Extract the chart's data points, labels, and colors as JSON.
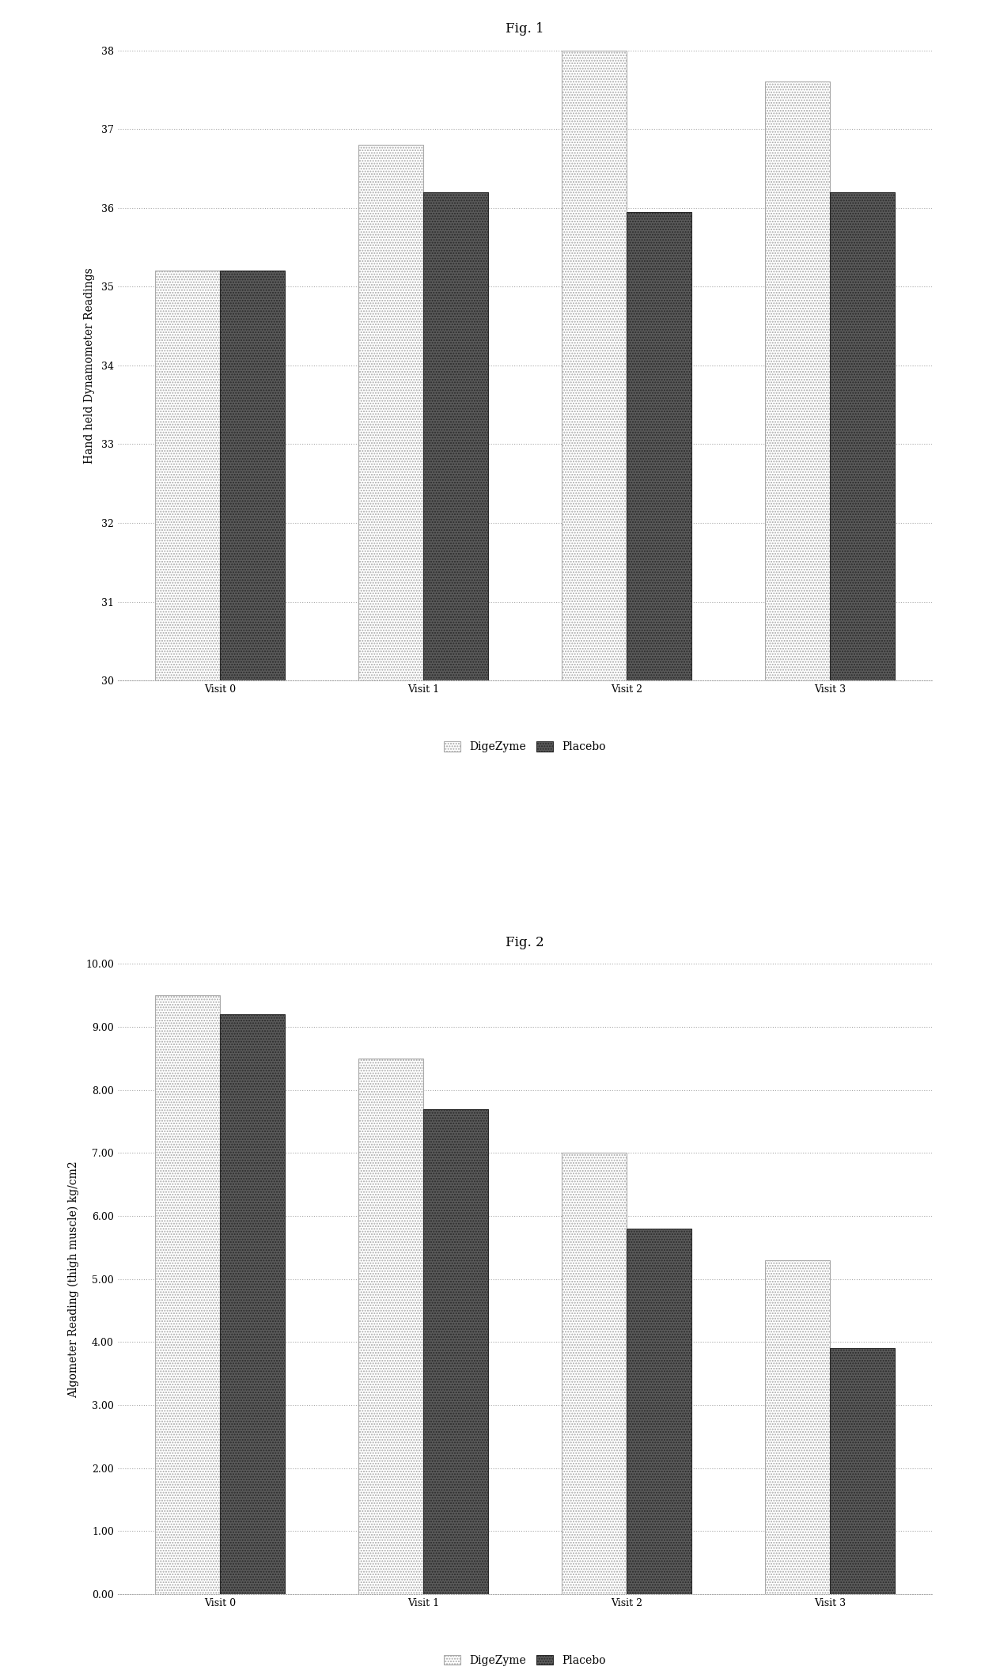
{
  "fig1": {
    "title": "Fig. 1",
    "categories": [
      "Visit 0",
      "Visit 1",
      "Visit 2",
      "Visit 3"
    ],
    "digozyme": [
      35.2,
      36.8,
      38.0,
      37.6
    ],
    "placebo": [
      35.2,
      36.2,
      35.95,
      36.2
    ],
    "ylabel": "Hand held Dynamometer Readings",
    "ylim": [
      30,
      38
    ],
    "yticks": [
      30,
      31,
      32,
      33,
      34,
      35,
      36,
      37,
      38
    ],
    "legend": [
      "DigeZyme",
      "Placebo"
    ]
  },
  "fig2": {
    "title": "Fig. 2",
    "categories": [
      "Visit 0",
      "Visit 1",
      "Visit 2",
      "Visit 3"
    ],
    "digozyme": [
      9.5,
      8.5,
      7.0,
      5.3
    ],
    "placebo": [
      9.2,
      7.7,
      5.8,
      3.9
    ],
    "ylabel": "Algometer Reading (thigh muscle) kg/cm2",
    "ylim": [
      0.0,
      10.0
    ],
    "yticks": [
      0.0,
      1.0,
      2.0,
      3.0,
      4.0,
      5.0,
      6.0,
      7.0,
      8.0,
      9.0,
      10.0
    ],
    "legend": [
      "DigeZyme",
      "Placebo"
    ]
  },
  "digozyme_color": "#ffffff",
  "placebo_color": "#5a5a5a",
  "digozyme_hatch": ".....",
  "placebo_hatch": ".....",
  "digozyme_edgecolor": "#aaaaaa",
  "placebo_edgecolor": "#2a2a2a",
  "background_color": "#ffffff",
  "fig_background_color": "#ffffff",
  "bar_width": 0.32,
  "title_fontsize": 12,
  "axis_label_fontsize": 10,
  "tick_fontsize": 9,
  "legend_fontsize": 10
}
